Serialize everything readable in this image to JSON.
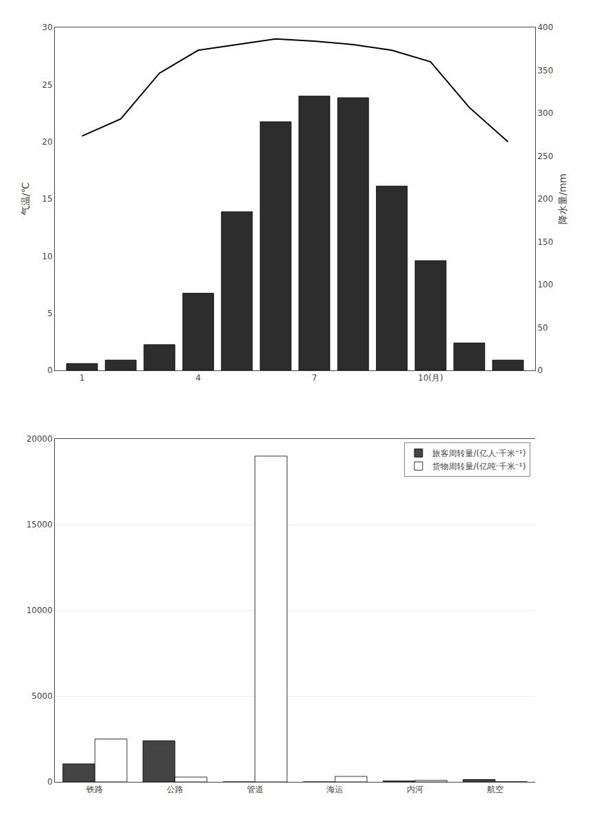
{
  "chart_data": [
    {
      "type": "bar",
      "x": [
        1,
        2,
        3,
        4,
        5,
        6,
        7,
        8,
        9,
        10,
        11,
        12
      ],
      "xlim": [
        0.3,
        12.7
      ],
      "xticks": [
        1,
        4,
        7,
        {
          "value": 10,
          "label": "10(月)"
        }
      ],
      "ylabel": "降水量/mm",
      "ylim": [
        0,
        400
      ],
      "yticks": [
        0,
        50,
        100,
        150,
        200,
        250,
        300,
        350,
        400
      ],
      "y2label": "气温/℃",
      "y2lim": [
        0,
        30
      ],
      "y2ticks": [
        0,
        5,
        10,
        15,
        20,
        25,
        30
      ],
      "grid": false,
      "series": [
        {
          "type": "bar",
          "color": "#2d2d2d",
          "values": [
            8,
            12,
            30,
            90,
            185,
            290,
            320,
            318,
            215,
            128,
            32,
            12
          ]
        },
        {
          "type": "line",
          "axis": "y2",
          "color": "black",
          "values": [
            20.5,
            22,
            26,
            28,
            28.5,
            29,
            28.8,
            28.5,
            28,
            27,
            23,
            20
          ]
        }
      ]
    },
    {
      "type": "bar",
      "categories": [
        "铁路",
        "公路",
        "管道",
        "海运",
        "内河",
        "航空"
      ],
      "ylim": [
        0,
        20000
      ],
      "yticks": [
        0,
        5000,
        10000,
        15000,
        20000
      ],
      "grid": true,
      "legend": "upper right",
      "series": [
        {
          "name": "旅客周转量/(亿人·千米⁻¹)",
          "color": "#444444",
          "values": [
            1050,
            2400,
            0,
            0,
            55,
            140
          ]
        },
        {
          "name": "货物周转量/(亿吨·千米⁻¹)",
          "color": "white",
          "values": [
            2500,
            280,
            19000,
            320,
            90,
            8
          ]
        }
      ]
    }
  ]
}
